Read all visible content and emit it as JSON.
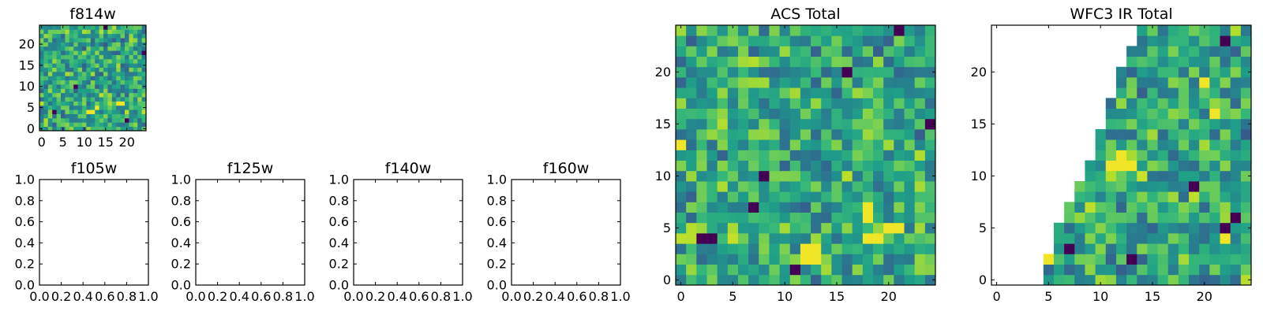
{
  "chart_data": [
    {
      "type": "heatmap",
      "title": "f814w",
      "grid": "25x25",
      "seed": 814,
      "xlim": [
        -0.5,
        24.5
      ],
      "ylim": [
        -0.5,
        24.5
      ],
      "x_ticks": [
        0,
        5,
        10,
        15,
        20
      ],
      "y_ticks": [
        0,
        5,
        10,
        15,
        20
      ],
      "colormap": "viridis",
      "hot_cells": [
        [
          11,
          4
        ],
        [
          12,
          4
        ],
        [
          13,
          5
        ],
        [
          18,
          6
        ],
        [
          19,
          6
        ]
      ],
      "dark_cells": [
        [
          3,
          4
        ],
        [
          15,
          24
        ],
        [
          24,
          18
        ],
        [
          8,
          10
        ],
        [
          20,
          2
        ]
      ]
    },
    {
      "type": "heatmap",
      "title": "f105w",
      "empty": true,
      "xlim": [
        0,
        1
      ],
      "ylim": [
        0,
        1
      ],
      "x_ticks": [
        "0.0",
        "0.2",
        "0.4",
        "0.6",
        "0.8",
        "1.0"
      ],
      "y_ticks": [
        "0.0",
        "0.2",
        "0.4",
        "0.6",
        "0.8",
        "1.0"
      ]
    },
    {
      "type": "heatmap",
      "title": "f125w",
      "empty": true,
      "xlim": [
        0,
        1
      ],
      "ylim": [
        0,
        1
      ],
      "x_ticks": [
        "0.0",
        "0.2",
        "0.4",
        "0.6",
        "0.8",
        "1.0"
      ],
      "y_ticks": [
        "0.0",
        "0.2",
        "0.4",
        "0.6",
        "0.8",
        "1.0"
      ]
    },
    {
      "type": "heatmap",
      "title": "f140w",
      "empty": true,
      "xlim": [
        0,
        1
      ],
      "ylim": [
        0,
        1
      ],
      "x_ticks": [
        "0.0",
        "0.2",
        "0.4",
        "0.6",
        "0.8",
        "1.0"
      ],
      "y_ticks": [
        "0.0",
        "0.2",
        "0.4",
        "0.6",
        "0.8",
        "1.0"
      ]
    },
    {
      "type": "heatmap",
      "title": "f160w",
      "empty": true,
      "xlim": [
        0,
        1
      ],
      "ylim": [
        0,
        1
      ],
      "x_ticks": [
        "0.0",
        "0.2",
        "0.4",
        "0.6",
        "0.8",
        "1.0"
      ],
      "y_ticks": [
        "0.0",
        "0.2",
        "0.4",
        "0.6",
        "0.8",
        "1.0"
      ]
    },
    {
      "type": "heatmap",
      "title": "ACS Total",
      "grid": "25x25",
      "seed": 2024,
      "xlim": [
        -0.5,
        24.5
      ],
      "ylim": [
        -0.5,
        24.5
      ],
      "x_ticks": [
        0,
        5,
        10,
        15,
        20
      ],
      "y_ticks": [
        0,
        5,
        10,
        15,
        20
      ],
      "colormap": "viridis",
      "hot_cells": [
        [
          12,
          2
        ],
        [
          13,
          2
        ],
        [
          12,
          3
        ],
        [
          13,
          3
        ],
        [
          18,
          4
        ],
        [
          19,
          4
        ],
        [
          20,
          5
        ],
        [
          21,
          5
        ],
        [
          18,
          6
        ],
        [
          18,
          7
        ],
        [
          0,
          13
        ]
      ],
      "dark_cells": [
        [
          2,
          4
        ],
        [
          3,
          4
        ],
        [
          21,
          24
        ],
        [
          16,
          20
        ],
        [
          8,
          10
        ],
        [
          7,
          7
        ],
        [
          11,
          1
        ],
        [
          24,
          15
        ]
      ]
    },
    {
      "type": "heatmap",
      "title": "WFC3 IR Total",
      "grid": "25x25",
      "seed": 3141,
      "xlim": [
        -0.5,
        24.5
      ],
      "ylim": [
        -0.5,
        24.5
      ],
      "x_ticks": [
        0,
        5,
        10,
        15,
        20
      ],
      "y_ticks": [
        0,
        5,
        10,
        15,
        20
      ],
      "colormap": "viridis",
      "masked_region": "upper-left triangle (NaN)",
      "row_start_columns": [
        5,
        5,
        5,
        6,
        6,
        6,
        7,
        7,
        8,
        8,
        9,
        9,
        10,
        10,
        10,
        11,
        11,
        11,
        12,
        12,
        12,
        13,
        13,
        14,
        14
      ],
      "hot_cells": [
        [
          11,
          11
        ],
        [
          12,
          11
        ],
        [
          13,
          11
        ],
        [
          12,
          12
        ],
        [
          5,
          2
        ],
        [
          22,
          4
        ],
        [
          21,
          16
        ],
        [
          20,
          19
        ]
      ],
      "dark_cells": [
        [
          22,
          23
        ],
        [
          7,
          3
        ],
        [
          13,
          2
        ],
        [
          19,
          9
        ],
        [
          23,
          6
        ],
        [
          22,
          5
        ]
      ]
    }
  ]
}
